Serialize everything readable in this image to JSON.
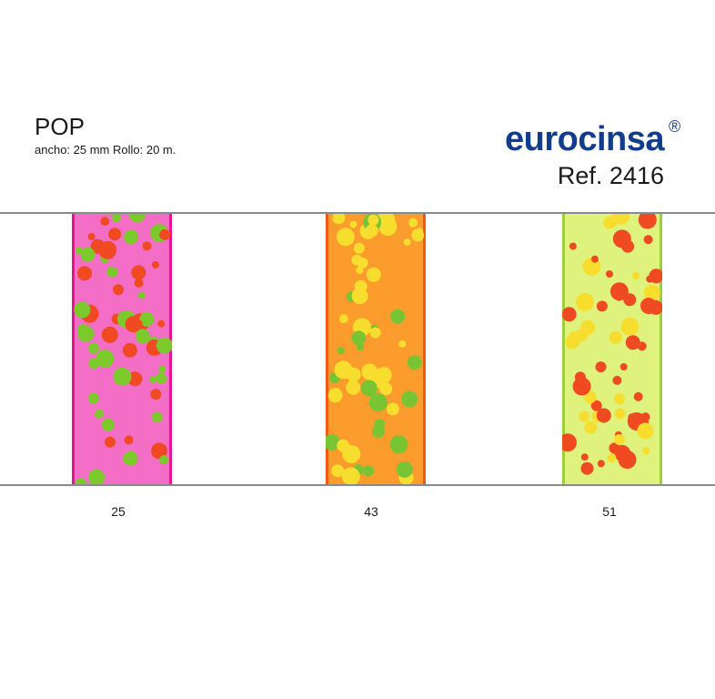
{
  "header": {
    "title": "POP",
    "specs": "ancho: 25 mm  Rollo: 20 m.",
    "brand": "eurocinsa",
    "registered": "®",
    "reference": "Ref. 2416"
  },
  "ribbons": [
    {
      "code": "25",
      "base": "#f36bc4",
      "edge": "#e8148f",
      "dot_a": "#7cc92b",
      "dot_b": "#f04a23"
    },
    {
      "code": "43",
      "base": "#fb9a28",
      "edge": "#f05a12",
      "dot_a": "#f7dd2d",
      "dot_b": "#79c433"
    },
    {
      "code": "51",
      "base": "#dff27a",
      "edge": "#9ccf3c",
      "dot_a": "#f7dd2d",
      "dot_b": "#f04a23"
    }
  ]
}
